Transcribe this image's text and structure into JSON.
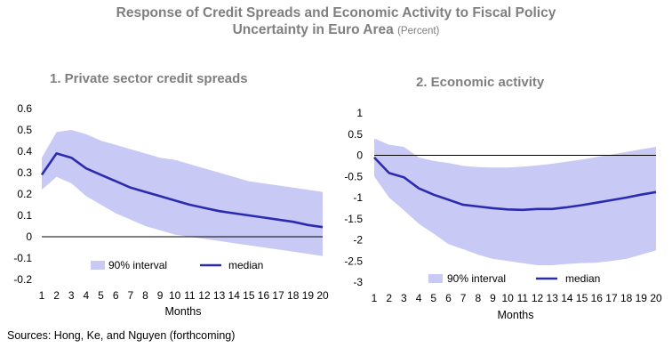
{
  "title_line1": "Response of Credit Spreads and Economic Activity to Fiscal Policy",
  "title_line2": "Uncertainty in Euro Area",
  "title_unit": "(Percent)",
  "source": "Sources: Hong, Ke, and Nguyen (forthcoming)",
  "colors": {
    "band": "#c9c9f5",
    "median": "#2b2bb0",
    "zero_line": "#000000"
  },
  "chart_data": [
    {
      "type": "line",
      "panel_title": "1.  Private sector credit spreads",
      "xlabel": "Months",
      "x": [
        1,
        2,
        3,
        4,
        5,
        6,
        7,
        8,
        9,
        10,
        11,
        12,
        13,
        14,
        15,
        16,
        17,
        18,
        19,
        20
      ],
      "ylim": [
        -0.2,
        0.6
      ],
      "yticks": [
        "0.6",
        "0.5",
        "0.4",
        "0.3",
        "0.2",
        "0.1",
        "0",
        "-0.1",
        "-0.2"
      ],
      "ytick_values": [
        0.6,
        0.5,
        0.4,
        0.3,
        0.2,
        0.1,
        0,
        -0.1,
        -0.2
      ],
      "series": [
        {
          "name": "median",
          "values": [
            0.29,
            0.39,
            0.37,
            0.32,
            0.29,
            0.26,
            0.23,
            0.21,
            0.19,
            0.17,
            0.15,
            0.135,
            0.12,
            0.11,
            0.1,
            0.09,
            0.08,
            0.07,
            0.055,
            0.045
          ]
        },
        {
          "name": "90% interval",
          "upper": [
            0.37,
            0.49,
            0.5,
            0.48,
            0.45,
            0.43,
            0.41,
            0.39,
            0.37,
            0.36,
            0.34,
            0.32,
            0.3,
            0.28,
            0.26,
            0.25,
            0.24,
            0.23,
            0.22,
            0.21
          ],
          "lower": [
            0.22,
            0.28,
            0.25,
            0.19,
            0.15,
            0.11,
            0.08,
            0.05,
            0.03,
            0.01,
            0.0,
            -0.01,
            -0.02,
            -0.03,
            -0.04,
            -0.05,
            -0.06,
            -0.07,
            -0.08,
            -0.09
          ]
        }
      ],
      "legend": {
        "band_label": "90% interval",
        "line_label": "median",
        "placement": "bottom-left"
      }
    },
    {
      "type": "line",
      "panel_title": "2. Economic activity",
      "xlabel": "Months",
      "x": [
        1,
        2,
        3,
        4,
        5,
        6,
        7,
        8,
        9,
        10,
        11,
        12,
        13,
        14,
        15,
        16,
        17,
        18,
        19,
        20
      ],
      "ylim": [
        -3,
        1
      ],
      "yticks": [
        "1",
        "0.5",
        "0",
        "-0.5",
        "-1",
        "-1.5",
        "-2",
        "-2.5",
        "-3"
      ],
      "ytick_values": [
        1,
        0.5,
        0,
        -0.5,
        -1,
        -1.5,
        -2,
        -2.5,
        -3
      ],
      "series": [
        {
          "name": "median",
          "values": [
            -0.05,
            -0.42,
            -0.52,
            -0.78,
            -0.93,
            -1.05,
            -1.17,
            -1.21,
            -1.25,
            -1.28,
            -1.29,
            -1.27,
            -1.27,
            -1.23,
            -1.18,
            -1.12,
            -1.06,
            -1.0,
            -0.93,
            -0.87
          ]
        },
        {
          "name": "90% interval",
          "upper": [
            0.4,
            0.25,
            0.2,
            -0.05,
            -0.13,
            -0.18,
            -0.25,
            -0.28,
            -0.29,
            -0.29,
            -0.27,
            -0.24,
            -0.2,
            -0.15,
            -0.1,
            -0.04,
            0.02,
            0.08,
            0.14,
            0.2
          ],
          "lower": [
            -0.5,
            -1.0,
            -1.3,
            -1.62,
            -1.85,
            -2.1,
            -2.22,
            -2.35,
            -2.45,
            -2.5,
            -2.55,
            -2.6,
            -2.6,
            -2.57,
            -2.55,
            -2.54,
            -2.5,
            -2.45,
            -2.35,
            -2.25
          ]
        }
      ],
      "legend": {
        "band_label": "90% interval",
        "line_label": "median",
        "placement": "bottom-left"
      }
    }
  ]
}
